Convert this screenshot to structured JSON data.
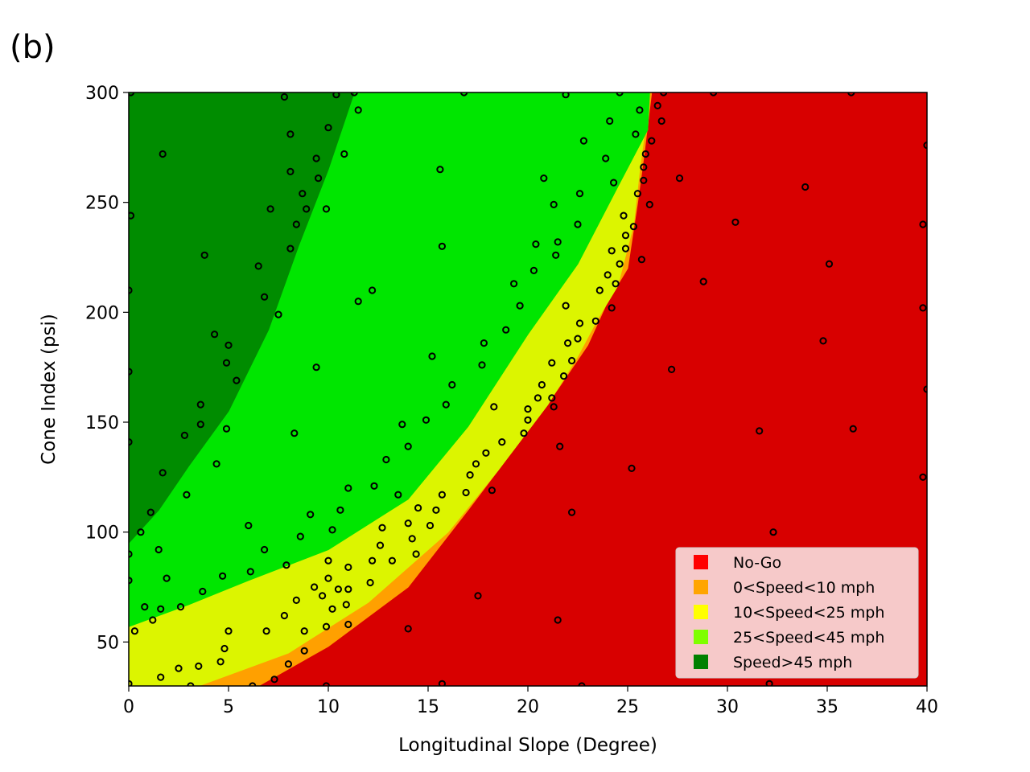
{
  "panel_label": "(b)",
  "chart_data": {
    "type": "scatter",
    "xlabel": "Longitudinal Slope (Degree)",
    "ylabel": "Cone Index (psi)",
    "xlim": [
      0,
      40
    ],
    "ylim": [
      30,
      300
    ],
    "x_ticks": [
      0,
      5,
      10,
      15,
      20,
      25,
      30,
      35,
      40
    ],
    "y_ticks": [
      50,
      100,
      150,
      200,
      250,
      300
    ],
    "legend_position": "lower-right",
    "legend": [
      {
        "label": "No-Go",
        "color": "#ff0000"
      },
      {
        "label": "0<Speed<10 mph",
        "color": "#ffa500"
      },
      {
        "label": "10<Speed<25 mph",
        "color": "#ffff00"
      },
      {
        "label": "25<Speed<45 mph",
        "color": "#7fff00"
      },
      {
        "label": "Speed>45 mph",
        "color": "#008000"
      }
    ],
    "regions": [
      {
        "name": "No-Go",
        "color": "#d80000",
        "boundary": [
          [
            6.5,
            30
          ],
          [
            10,
            48
          ],
          [
            14,
            75
          ],
          [
            17,
            110
          ],
          [
            19.5,
            140
          ],
          [
            21.5,
            165
          ],
          [
            23,
            185
          ],
          [
            24,
            205
          ],
          [
            25,
            220
          ],
          [
            25.5,
            250
          ],
          [
            25.8,
            270
          ],
          [
            26,
            285
          ],
          [
            26.2,
            300
          ],
          [
            40,
            300
          ],
          [
            40,
            30
          ]
        ]
      },
      {
        "name": "0<Speed<10 mph",
        "color": "#ffa000",
        "boundary": [
          [
            3.5,
            30
          ],
          [
            8,
            45
          ],
          [
            12,
            68
          ],
          [
            16,
            100
          ],
          [
            18.5,
            128
          ],
          [
            21,
            158
          ],
          [
            22.5,
            180
          ],
          [
            23.5,
            197
          ],
          [
            24.5,
            212
          ],
          [
            25.3,
            240
          ],
          [
            25.6,
            265
          ],
          [
            25.9,
            285
          ],
          [
            26.1,
            300
          ],
          [
            26.2,
            300
          ],
          [
            26,
            285
          ],
          [
            25.8,
            270
          ],
          [
            25.5,
            250
          ],
          [
            25,
            220
          ],
          [
            24,
            205
          ],
          [
            23,
            185
          ],
          [
            21.5,
            165
          ],
          [
            19.5,
            140
          ],
          [
            17,
            110
          ],
          [
            14,
            75
          ],
          [
            10,
            48
          ],
          [
            6.5,
            30
          ]
        ]
      },
      {
        "name": "10<Speed<25 mph",
        "color": "#dcf500",
        "boundary": [
          [
            0,
            30
          ],
          [
            0,
            57
          ],
          [
            3,
            67
          ],
          [
            6,
            78
          ],
          [
            10,
            92
          ],
          [
            14,
            115
          ],
          [
            17,
            148
          ],
          [
            20,
            190
          ],
          [
            22.5,
            222
          ],
          [
            24.5,
            257
          ],
          [
            26,
            283
          ],
          [
            26.1,
            300
          ],
          [
            25.9,
            285
          ],
          [
            25.6,
            265
          ],
          [
            25.3,
            240
          ],
          [
            24.5,
            212
          ],
          [
            23.5,
            197
          ],
          [
            22.5,
            180
          ],
          [
            21,
            158
          ],
          [
            18.5,
            128
          ],
          [
            16,
            100
          ],
          [
            12,
            68
          ],
          [
            8,
            45
          ],
          [
            3.5,
            30
          ]
        ]
      },
      {
        "name": "25<Speed<45 mph",
        "color": "#00e600",
        "boundary": [
          [
            0,
            57
          ],
          [
            0,
            300
          ],
          [
            26.1,
            300
          ],
          [
            26,
            283
          ],
          [
            24.5,
            257
          ],
          [
            22.5,
            222
          ],
          [
            20,
            190
          ],
          [
            17,
            148
          ],
          [
            14,
            115
          ],
          [
            10,
            92
          ],
          [
            6,
            78
          ],
          [
            3,
            67
          ]
        ]
      },
      {
        "name": "Speed>45 mph",
        "color": "#008c00",
        "boundary": [
          [
            0,
            95
          ],
          [
            0,
            300
          ],
          [
            11.3,
            300
          ],
          [
            10,
            265
          ],
          [
            8.5,
            230
          ],
          [
            7,
            192
          ],
          [
            5,
            155
          ],
          [
            3,
            130
          ],
          [
            1.5,
            110
          ]
        ]
      }
    ],
    "points": [
      [
        0.1,
        300
      ],
      [
        0.1,
        244
      ],
      [
        0,
        210
      ],
      [
        0,
        173
      ],
      [
        0,
        141
      ],
      [
        0,
        90
      ],
      [
        0,
        78
      ],
      [
        0,
        31
      ],
      [
        0.3,
        55
      ],
      [
        0.6,
        100
      ],
      [
        0.8,
        66
      ],
      [
        1.1,
        109
      ],
      [
        1.2,
        60
      ],
      [
        1.5,
        92
      ],
      [
        1.6,
        65
      ],
      [
        1.6,
        34
      ],
      [
        1.7,
        127
      ],
      [
        1.7,
        272
      ],
      [
        1.9,
        79
      ],
      [
        2.5,
        38
      ],
      [
        2.6,
        66
      ],
      [
        2.8,
        144
      ],
      [
        2.9,
        117
      ],
      [
        3.1,
        30
      ],
      [
        3.5,
        39
      ],
      [
        3.6,
        149
      ],
      [
        3.6,
        158
      ],
      [
        3.7,
        73
      ],
      [
        3.8,
        226
      ],
      [
        4.3,
        190
      ],
      [
        4.4,
        131
      ],
      [
        4.6,
        41
      ],
      [
        4.7,
        80
      ],
      [
        4.8,
        47
      ],
      [
        4.9,
        177
      ],
      [
        4.9,
        147
      ],
      [
        5,
        185
      ],
      [
        5,
        55
      ],
      [
        5.4,
        169
      ],
      [
        6,
        103
      ],
      [
        6.1,
        82
      ],
      [
        6.2,
        30
      ],
      [
        6.5,
        221
      ],
      [
        6.8,
        207
      ],
      [
        6.8,
        92
      ],
      [
        6.9,
        55
      ],
      [
        7.1,
        247
      ],
      [
        7.3,
        33
      ],
      [
        7.5,
        199
      ],
      [
        7.8,
        62
      ],
      [
        7.8,
        298
      ],
      [
        7.9,
        85
      ],
      [
        8,
        40
      ],
      [
        8.1,
        264
      ],
      [
        8.1,
        229
      ],
      [
        8.1,
        281
      ],
      [
        8.3,
        145
      ],
      [
        8.4,
        240
      ],
      [
        8.4,
        69
      ],
      [
        8.6,
        98
      ],
      [
        8.7,
        254
      ],
      [
        8.8,
        46
      ],
      [
        8.8,
        55
      ],
      [
        8.9,
        247
      ],
      [
        9.1,
        108
      ],
      [
        9.3,
        75
      ],
      [
        9.4,
        270
      ],
      [
        9.4,
        175
      ],
      [
        9.5,
        261
      ],
      [
        9.7,
        71
      ],
      [
        9.9,
        30
      ],
      [
        9.9,
        57
      ],
      [
        9.9,
        247
      ],
      [
        10,
        284
      ],
      [
        10,
        79
      ],
      [
        10,
        87
      ],
      [
        10.2,
        101
      ],
      [
        10.2,
        65
      ],
      [
        10.4,
        299
      ],
      [
        10.5,
        74
      ],
      [
        10.6,
        110
      ],
      [
        10.8,
        272
      ],
      [
        10.9,
        67
      ],
      [
        11,
        58
      ],
      [
        11,
        74
      ],
      [
        11,
        84
      ],
      [
        11,
        120
      ],
      [
        11.3,
        300
      ],
      [
        11.5,
        292
      ],
      [
        11.5,
        205
      ],
      [
        12.1,
        77
      ],
      [
        12.2,
        87
      ],
      [
        12.2,
        210
      ],
      [
        12.3,
        121
      ],
      [
        12.6,
        94
      ],
      [
        12.7,
        102
      ],
      [
        12.9,
        133
      ],
      [
        13.2,
        87
      ],
      [
        13.5,
        117
      ],
      [
        13.7,
        149
      ],
      [
        14,
        104
      ],
      [
        14,
        139
      ],
      [
        14,
        56
      ],
      [
        14.2,
        97
      ],
      [
        14.4,
        90
      ],
      [
        14.5,
        111
      ],
      [
        14.9,
        151
      ],
      [
        15.1,
        103
      ],
      [
        15.2,
        180
      ],
      [
        15.4,
        110
      ],
      [
        15.6,
        265
      ],
      [
        15.7,
        230
      ],
      [
        15.7,
        117
      ],
      [
        15.7,
        31
      ],
      [
        15.9,
        158
      ],
      [
        16.2,
        167
      ],
      [
        16.8,
        300
      ],
      [
        16.9,
        118
      ],
      [
        17.1,
        126
      ],
      [
        17.4,
        131
      ],
      [
        17.5,
        71
      ],
      [
        17.7,
        176
      ],
      [
        17.8,
        186
      ],
      [
        17.9,
        136
      ],
      [
        18.2,
        119
      ],
      [
        18.3,
        157
      ],
      [
        18.7,
        141
      ],
      [
        18.9,
        192
      ],
      [
        19.3,
        213
      ],
      [
        19.6,
        203
      ],
      [
        19.8,
        145
      ],
      [
        20,
        151
      ],
      [
        20,
        156
      ],
      [
        20.3,
        219
      ],
      [
        20.4,
        231
      ],
      [
        20.5,
        161
      ],
      [
        20.7,
        167
      ],
      [
        20.8,
        261
      ],
      [
        21.2,
        177
      ],
      [
        21.2,
        161
      ],
      [
        21.3,
        249
      ],
      [
        21.3,
        157
      ],
      [
        21.4,
        226
      ],
      [
        21.5,
        232
      ],
      [
        21.5,
        60
      ],
      [
        21.6,
        139
      ],
      [
        21.8,
        171
      ],
      [
        21.9,
        203
      ],
      [
        21.9,
        299
      ],
      [
        22,
        186
      ],
      [
        22.2,
        178
      ],
      [
        22.2,
        109
      ],
      [
        22.5,
        240
      ],
      [
        22.5,
        188
      ],
      [
        22.6,
        195
      ],
      [
        22.6,
        254
      ],
      [
        22.7,
        30
      ],
      [
        22.8,
        278
      ],
      [
        23.4,
        196
      ],
      [
        23.6,
        210
      ],
      [
        23.9,
        270
      ],
      [
        24,
        217
      ],
      [
        24.1,
        287
      ],
      [
        24.2,
        228
      ],
      [
        24.2,
        202
      ],
      [
        24.3,
        259
      ],
      [
        24.4,
        213
      ],
      [
        24.6,
        222
      ],
      [
        24.6,
        300
      ],
      [
        24.8,
        244
      ],
      [
        24.9,
        235
      ],
      [
        24.9,
        229
      ],
      [
        25.2,
        129
      ],
      [
        25.3,
        239
      ],
      [
        25.4,
        281
      ],
      [
        25.5,
        254
      ],
      [
        25.6,
        292
      ],
      [
        25.7,
        224
      ],
      [
        25.8,
        266
      ],
      [
        25.8,
        260
      ],
      [
        25.9,
        272
      ],
      [
        26.1,
        249
      ],
      [
        26.2,
        278
      ],
      [
        26.5,
        294
      ],
      [
        26.7,
        287
      ],
      [
        26.8,
        300
      ],
      [
        27.2,
        174
      ],
      [
        27.6,
        261
      ],
      [
        28.8,
        214
      ],
      [
        28.7,
        82
      ],
      [
        29.3,
        300
      ],
      [
        30.4,
        241
      ],
      [
        31.6,
        146
      ],
      [
        32.1,
        31
      ],
      [
        32.3,
        100
      ],
      [
        33,
        69
      ],
      [
        33.9,
        257
      ],
      [
        34.8,
        187
      ],
      [
        35.1,
        222
      ],
      [
        36.2,
        300
      ],
      [
        36.3,
        147
      ],
      [
        37.7,
        91
      ],
      [
        39.8,
        125
      ],
      [
        39.8,
        202
      ],
      [
        39.8,
        240
      ],
      [
        40,
        165
      ],
      [
        40,
        276
      ]
    ]
  }
}
